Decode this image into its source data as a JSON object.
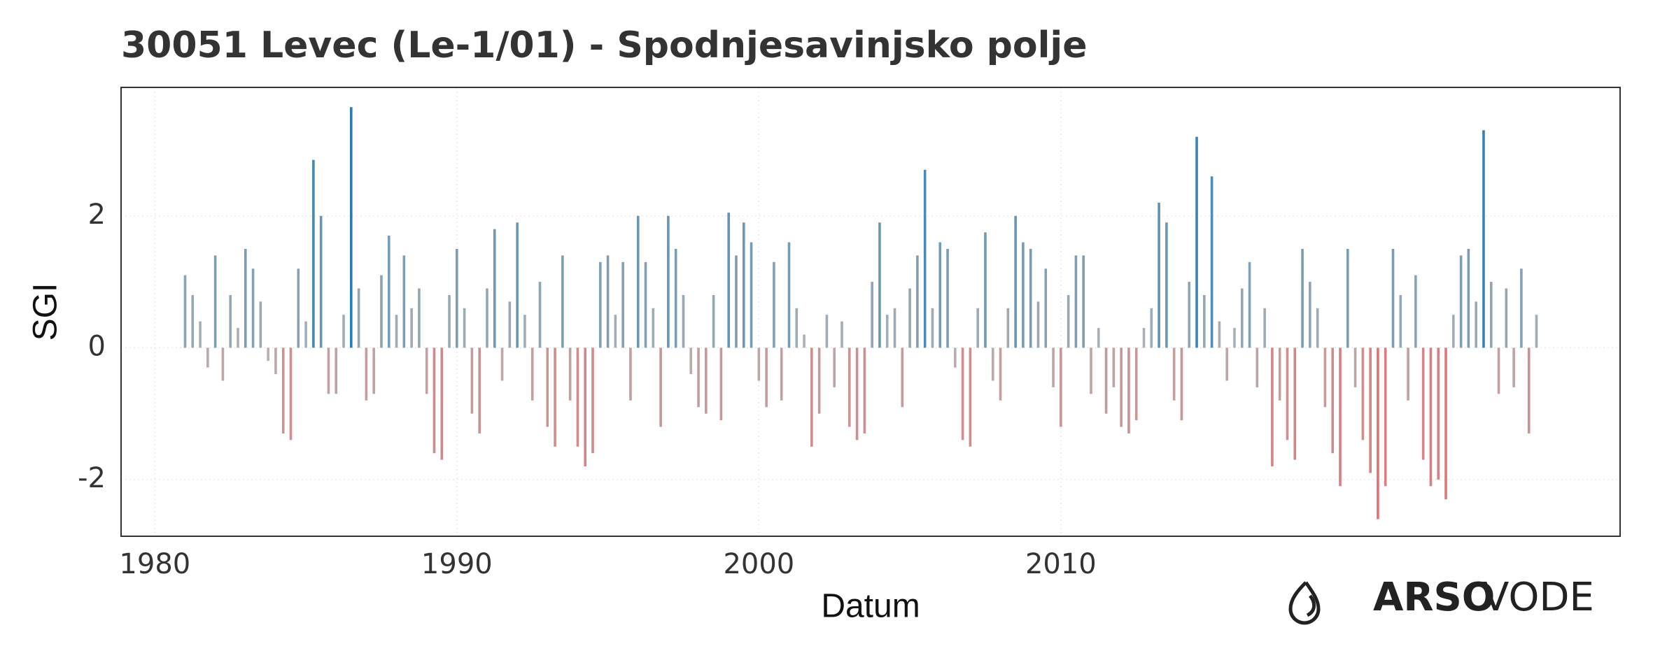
{
  "chart_data": {
    "type": "bar",
    "title": "30051 Levec (Le-1/01) - Spodnjesavinjsko polje",
    "x_label": "Datum",
    "y_label": "SGI",
    "logo": {
      "bold": "ARSO",
      "light": "VODE"
    },
    "xlim": [
      1978.88,
      2028.52
    ],
    "xticks": [
      1980,
      1990,
      2000,
      2010
    ],
    "ylim": [
      -2.86,
      3.95
    ],
    "yticks": [
      -2,
      0,
      2
    ],
    "grid": true,
    "positive_color": "#1f77b4",
    "negative_color": "#e8696b",
    "neutral_color": "#b4b4b4",
    "x": [
      1981,
      1981.25,
      1981.5,
      1981.75,
      1982,
      1982.25,
      1982.5,
      1982.75,
      1983,
      1983.25,
      1983.5,
      1983.75,
      1984,
      1984.25,
      1984.5,
      1984.75,
      1985,
      1985.25,
      1985.5,
      1985.75,
      1986,
      1986.25,
      1986.5,
      1986.75,
      1987,
      1987.25,
      1987.5,
      1987.75,
      1988,
      1988.25,
      1988.5,
      1988.75,
      1989,
      1989.25,
      1989.5,
      1989.75,
      1990,
      1990.25,
      1990.5,
      1990.75,
      1991,
      1991.25,
      1991.5,
      1991.75,
      1992,
      1992.25,
      1992.5,
      1992.75,
      1993,
      1993.25,
      1993.5,
      1993.75,
      1994,
      1994.25,
      1994.5,
      1994.75,
      1995,
      1995.25,
      1995.5,
      1995.75,
      1996,
      1996.25,
      1996.5,
      1996.75,
      1997,
      1997.25,
      1997.5,
      1997.75,
      1998,
      1998.25,
      1998.5,
      1998.75,
      1999,
      1999.25,
      1999.5,
      1999.75,
      2000,
      2000.25,
      2000.5,
      2000.75,
      2001,
      2001.25,
      2001.5,
      2001.75,
      2002,
      2002.25,
      2002.5,
      2002.75,
      2003,
      2003.25,
      2003.5,
      2003.75,
      2004,
      2004.25,
      2004.5,
      2004.75,
      2005,
      2005.25,
      2005.5,
      2005.75,
      2006,
      2006.25,
      2006.5,
      2006.75,
      2007,
      2007.25,
      2007.5,
      2007.75,
      2008,
      2008.25,
      2008.5,
      2008.75,
      2009,
      2009.25,
      2009.5,
      2009.75,
      2010,
      2010.25,
      2010.5,
      2010.75,
      2011,
      2011.25,
      2011.5,
      2011.75,
      2012,
      2012.25,
      2012.5,
      2012.75,
      2013,
      2013.25,
      2013.5,
      2013.75,
      2014,
      2014.25,
      2014.5,
      2014.75,
      2015,
      2015.25,
      2015.5,
      2015.75,
      2016,
      2016.25,
      2016.5,
      2016.75,
      2017,
      2017.25,
      2017.5,
      2017.75,
      2018,
      2018.25,
      2018.5,
      2018.75,
      2019,
      2019.25,
      2019.5,
      2019.75,
      2020,
      2020.25,
      2020.5,
      2020.75,
      2021,
      2021.25,
      2021.5,
      2021.75,
      2022,
      2022.25,
      2022.5,
      2022.75,
      2023,
      2023.25,
      2023.5,
      2023.75,
      2024,
      2024.25,
      2024.5,
      2024.75,
      2025,
      2025.25,
      2025.5,
      2025.75
    ],
    "values": [
      1.1,
      0.8,
      0.4,
      -0.3,
      1.4,
      -0.5,
      0.8,
      0.3,
      1.5,
      1.2,
      0.7,
      -0.2,
      -0.4,
      -1.3,
      -1.4,
      1.2,
      0.4,
      2.85,
      2.0,
      -0.7,
      -0.7,
      0.5,
      3.65,
      0.9,
      -0.8,
      -0.7,
      1.1,
      1.7,
      0.5,
      1.4,
      0.6,
      0.9,
      -0.7,
      -1.6,
      -1.7,
      0.8,
      1.5,
      0.6,
      -1.0,
      -1.3,
      0.9,
      1.8,
      -0.5,
      0.7,
      1.9,
      0.5,
      -0.8,
      1.0,
      -1.2,
      -1.5,
      1.4,
      -0.8,
      -1.5,
      -1.8,
      -1.6,
      1.3,
      1.4,
      0.5,
      1.3,
      -0.8,
      2.0,
      1.3,
      0.6,
      -1.2,
      2.0,
      1.5,
      0.8,
      -0.4,
      -0.9,
      -1.0,
      0.8,
      -1.1,
      2.05,
      1.4,
      1.9,
      1.6,
      -0.5,
      -0.9,
      1.3,
      -0.8,
      1.6,
      0.6,
      0.2,
      -1.5,
      -1.0,
      0.5,
      -0.6,
      0.4,
      -1.2,
      -1.4,
      -1.3,
      1.0,
      1.9,
      0.5,
      0.6,
      -0.9,
      0.9,
      1.4,
      2.7,
      0.6,
      1.6,
      1.5,
      -0.3,
      -1.4,
      -1.5,
      0.6,
      1.75,
      -0.5,
      -0.8,
      0.6,
      2.0,
      1.6,
      1.5,
      0.7,
      1.2,
      -0.6,
      -1.2,
      0.8,
      1.4,
      1.4,
      -0.7,
      0.3,
      -1.0,
      -0.6,
      -1.2,
      -1.3,
      -1.1,
      0.3,
      0.6,
      2.2,
      1.9,
      -0.8,
      -1.1,
      1.0,
      3.2,
      0.8,
      2.6,
      0.4,
      -0.5,
      0.3,
      0.9,
      1.3,
      -0.6,
      0.6,
      -1.8,
      -0.8,
      -1.4,
      -1.7,
      1.5,
      1.0,
      0.6,
      -0.9,
      -1.6,
      -2.1,
      1.5,
      -0.6,
      -1.4,
      -1.9,
      -2.6,
      -2.1,
      1.5,
      0.8,
      -0.8,
      1.1,
      -1.7,
      -2.1,
      -2.0,
      -2.3,
      0.5,
      1.4,
      1.5,
      0.7,
      3.3,
      1.0,
      -0.7,
      0.9,
      -0.6,
      1.2,
      -1.3,
      0.5
    ]
  }
}
